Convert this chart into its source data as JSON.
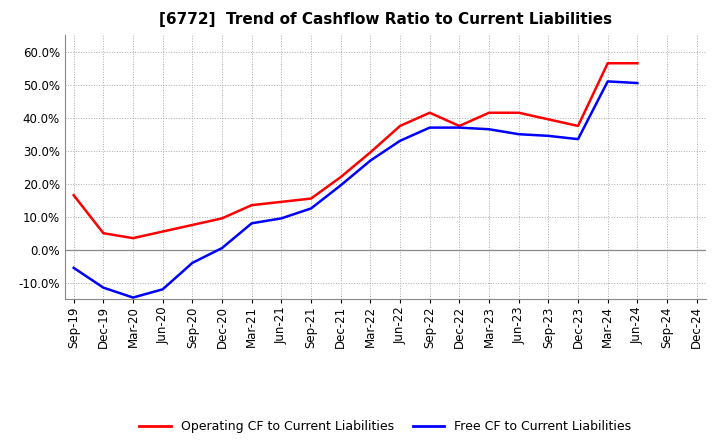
{
  "title": "[6772]  Trend of Cashflow Ratio to Current Liabilities",
  "x_labels": [
    "Sep-19",
    "Dec-19",
    "Mar-20",
    "Jun-20",
    "Sep-20",
    "Dec-20",
    "Mar-21",
    "Jun-21",
    "Sep-21",
    "Dec-21",
    "Mar-22",
    "Jun-22",
    "Sep-22",
    "Dec-22",
    "Mar-23",
    "Jun-23",
    "Sep-23",
    "Dec-23",
    "Mar-24",
    "Jun-24",
    "Sep-24",
    "Dec-24"
  ],
  "operating_cf": [
    0.165,
    0.05,
    0.035,
    0.055,
    0.075,
    0.095,
    0.135,
    0.145,
    0.155,
    0.22,
    0.295,
    0.375,
    0.415,
    0.375,
    0.415,
    0.415,
    0.395,
    0.375,
    0.565,
    0.565,
    null,
    null
  ],
  "free_cf": [
    -0.055,
    -0.115,
    -0.145,
    -0.12,
    -0.04,
    0.005,
    0.08,
    0.095,
    0.125,
    0.195,
    0.27,
    0.33,
    0.37,
    0.37,
    0.365,
    0.35,
    0.345,
    0.335,
    0.51,
    0.505,
    null,
    null
  ],
  "ylim": [
    -0.15,
    0.65
  ],
  "yticks": [
    -0.1,
    0.0,
    0.1,
    0.2,
    0.3,
    0.4,
    0.5,
    0.6
  ],
  "operating_color": "#ff0000",
  "free_color": "#0000ff",
  "grid_color": "#aaaaaa",
  "zero_line_color": "#888888",
  "background_color": "#ffffff",
  "plot_bg_color": "#ffffff",
  "title_fontsize": 11,
  "tick_fontsize": 8.5,
  "legend_fontsize": 9
}
